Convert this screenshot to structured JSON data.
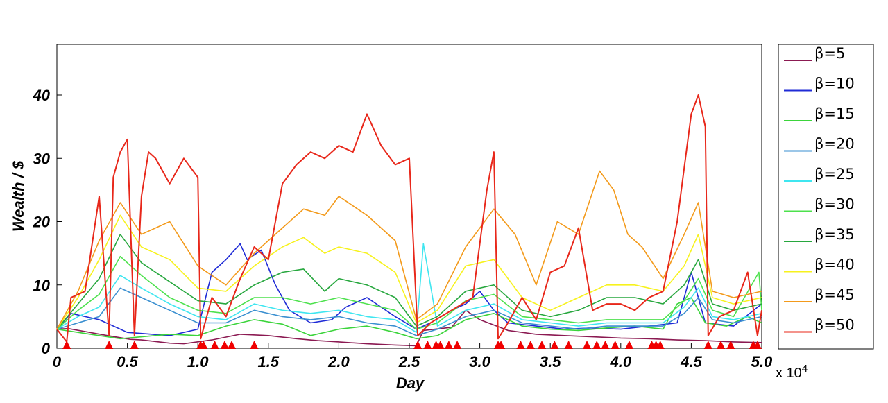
{
  "chart_data": {
    "type": "line",
    "title": "",
    "xlabel": "Day",
    "ylabel": "Wealth / $",
    "x_tick_labels": [
      "0",
      "0.5",
      "1.0",
      "1.5",
      "2.0",
      "2.5",
      "3.0",
      "3.5",
      "4.0",
      "4.5",
      "5.0"
    ],
    "x_multiplier_label": "x 10",
    "x_multiplier_exp": "4",
    "y_tick_labels": [
      "0",
      "10",
      "20",
      "30",
      "40"
    ],
    "xlim": [
      0,
      50000
    ],
    "ylim": [
      0,
      48
    ],
    "grid": false,
    "legend_position": "right",
    "reset_markers_x": [
      700,
      3700,
      5500,
      10200,
      10400,
      11200,
      11900,
      12400,
      14000,
      25600,
      26300,
      26900,
      27200,
      27800,
      28400,
      31300,
      31500,
      32900,
      33600,
      34400,
      35300,
      36300,
      37600,
      38300,
      38900,
      39600,
      40600,
      42200,
      42500,
      42800,
      46200,
      47100,
      47800,
      49400,
      49700
    ],
    "series": [
      {
        "name": "β=5",
        "color": "#8B1A52",
        "x": [
          0,
          800,
          3600,
          5200,
          6000,
          8000,
          9000,
          11000,
          13000,
          15000,
          17000,
          18500,
          20000,
          22000,
          24000,
          25500,
          26000,
          28000,
          29000,
          30000,
          31200,
          32000,
          34000,
          36000,
          38000,
          40000,
          42000,
          44000,
          46000,
          48000,
          50000
        ],
        "values": [
          3.0,
          3.1,
          2.0,
          1.4,
          1.3,
          0.8,
          0.7,
          1.3,
          2.2,
          2.0,
          1.5,
          1.2,
          1.0,
          0.7,
          0.5,
          0.4,
          2.8,
          3.3,
          6.0,
          4.5,
          3.5,
          2.8,
          2.2,
          2.0,
          1.8,
          1.6,
          1.5,
          1.3,
          1.2,
          1.0,
          0.9
        ]
      },
      {
        "name": "β=10",
        "color": "#1F2BD6",
        "x": [
          0,
          1000,
          3000,
          5000,
          8000,
          10000,
          11000,
          12000,
          13000,
          13500,
          14500,
          15500,
          16500,
          18000,
          19500,
          20500,
          22000,
          24000,
          25500,
          26500,
          28000,
          29000,
          30000,
          31000,
          32000,
          34000,
          36000,
          38000,
          40000,
          42000,
          44000,
          45000,
          46000,
          48000,
          50000
        ],
        "values": [
          3.0,
          5.5,
          4.5,
          2.5,
          2.0,
          3.0,
          12.0,
          14.0,
          16.5,
          14.0,
          15.5,
          10.0,
          6.0,
          4.0,
          4.5,
          6.5,
          8.0,
          5.0,
          3.0,
          4.0,
          6.0,
          7.0,
          9.0,
          6.0,
          4.0,
          3.5,
          3.0,
          3.2,
          3.0,
          3.5,
          4.0,
          12.0,
          4.0,
          3.5,
          7.0
        ]
      },
      {
        "name": "β=15",
        "color": "#3BD43B",
        "x": [
          0,
          1500,
          3000,
          4500,
          6000,
          8000,
          10000,
          12000,
          14000,
          16000,
          18000,
          20000,
          22000,
          24000,
          25500,
          27000,
          29000,
          31000,
          33000,
          35000,
          37000,
          39000,
          41000,
          43000,
          44000,
          45000,
          46000,
          47500,
          49000,
          50000
        ],
        "values": [
          3.0,
          2.5,
          2.0,
          1.5,
          1.8,
          2.2,
          2.0,
          3.5,
          4.5,
          3.8,
          2.0,
          3.0,
          3.5,
          2.5,
          1.5,
          2.0,
          4.5,
          5.5,
          3.5,
          3.0,
          2.8,
          3.2,
          3.5,
          3.0,
          7.0,
          8.0,
          4.0,
          3.5,
          5.0,
          4.0
        ]
      },
      {
        "name": "β=20",
        "color": "#3A8FD0",
        "x": [
          0,
          1500,
          3000,
          4500,
          6000,
          8000,
          10000,
          12000,
          14000,
          16000,
          18000,
          20000,
          22000,
          24000,
          25500,
          27000,
          29000,
          31000,
          33000,
          35000,
          37000,
          39000,
          41000,
          43000,
          44500,
          45500,
          46500,
          48000,
          50000
        ],
        "values": [
          3.0,
          4.0,
          5.0,
          9.5,
          8.0,
          6.0,
          4.0,
          4.0,
          6.0,
          5.0,
          4.5,
          5.0,
          4.0,
          3.5,
          2.0,
          3.0,
          5.0,
          6.0,
          4.0,
          3.5,
          3.0,
          3.5,
          3.5,
          3.5,
          5.5,
          8.0,
          4.5,
          4.0,
          5.0
        ]
      },
      {
        "name": "β=25",
        "color": "#3FE6F0",
        "x": [
          0,
          1500,
          3000,
          4500,
          6000,
          8000,
          10000,
          12000,
          14000,
          16000,
          18000,
          20000,
          22000,
          24000,
          25500,
          26000,
          27000,
          29000,
          31000,
          33000,
          35000,
          37000,
          39000,
          41000,
          43000,
          44500,
          45500,
          46500,
          48000,
          50000
        ],
        "values": [
          3.0,
          5.0,
          6.5,
          11.5,
          9.5,
          7.0,
          5.0,
          4.5,
          7.0,
          6.0,
          5.5,
          6.0,
          5.0,
          4.5,
          2.5,
          16.5,
          3.5,
          6.0,
          7.0,
          4.5,
          4.0,
          3.5,
          4.0,
          4.0,
          4.0,
          6.5,
          9.5,
          5.0,
          4.5,
          5.5
        ]
      },
      {
        "name": "β=30",
        "color": "#4DE14D",
        "x": [
          0,
          1500,
          3000,
          4500,
          6000,
          8000,
          10000,
          12000,
          14000,
          16000,
          18000,
          20000,
          22000,
          24000,
          25500,
          27000,
          29000,
          31000,
          33000,
          35000,
          37000,
          39000,
          41000,
          43000,
          44500,
          45500,
          46500,
          48000,
          49800,
          50000
        ],
        "values": [
          3.0,
          6.0,
          8.5,
          14.5,
          11.5,
          8.0,
          6.0,
          5.5,
          8.0,
          8.0,
          7.0,
          8.0,
          7.0,
          6.0,
          3.0,
          4.0,
          7.5,
          8.5,
          5.0,
          4.5,
          4.0,
          4.5,
          4.5,
          4.5,
          7.5,
          11.0,
          6.0,
          5.0,
          12.0,
          6.0
        ]
      },
      {
        "name": "β=35",
        "color": "#27A73E",
        "x": [
          0,
          1500,
          3000,
          4500,
          6000,
          8000,
          10000,
          12000,
          14000,
          16000,
          17500,
          19000,
          20000,
          22000,
          24000,
          25500,
          27000,
          29000,
          31000,
          33000,
          35000,
          37000,
          39000,
          41000,
          43000,
          44500,
          45500,
          46500,
          48000,
          50000
        ],
        "values": [
          3.0,
          7.0,
          11.0,
          18.0,
          13.5,
          10.5,
          7.5,
          7.0,
          10.0,
          12.0,
          12.5,
          9.0,
          11.0,
          10.0,
          8.0,
          3.5,
          5.0,
          9.0,
          10.0,
          6.0,
          5.0,
          6.0,
          8.0,
          8.0,
          7.0,
          10.0,
          14.0,
          7.0,
          6.0,
          7.0
        ]
      },
      {
        "name": "β=40",
        "color": "#F7F21D",
        "x": [
          0,
          1500,
          3000,
          4500,
          6000,
          8000,
          10000,
          12000,
          14000,
          16000,
          17500,
          19000,
          20000,
          22000,
          24000,
          25500,
          27000,
          29000,
          31000,
          33000,
          35000,
          37000,
          39000,
          41000,
          43000,
          44500,
          45500,
          46500,
          48000,
          50000
        ],
        "values": [
          3.0,
          8.0,
          14.0,
          21.0,
          16.0,
          14.0,
          9.5,
          9.0,
          13.0,
          16.0,
          17.5,
          15.0,
          16.0,
          15.0,
          12.0,
          4.0,
          6.0,
          13.0,
          14.0,
          8.0,
          6.0,
          8.0,
          10.0,
          10.0,
          9.0,
          13.0,
          18.0,
          8.0,
          7.0,
          8.0
        ]
      },
      {
        "name": "β=45",
        "color": "#F39A1B",
        "x": [
          0,
          1500,
          3000,
          4500,
          6000,
          8000,
          10000,
          12000,
          14000,
          16000,
          17500,
          19000,
          20000,
          22000,
          24000,
          25500,
          27000,
          29000,
          31000,
          32500,
          34000,
          35500,
          37000,
          38500,
          39500,
          40500,
          41500,
          43000,
          44500,
          45500,
          46500,
          48000,
          50000
        ],
        "values": [
          3.0,
          9.0,
          17.0,
          23.0,
          18.0,
          20.0,
          13.0,
          10.0,
          15.0,
          19.0,
          22.0,
          21.0,
          24.0,
          21.0,
          17.0,
          4.5,
          7.0,
          16.0,
          22.0,
          18.0,
          10.0,
          20.0,
          18.0,
          28.0,
          25.0,
          18.0,
          16.0,
          11.0,
          18.0,
          23.0,
          9.0,
          8.0,
          9.0
        ]
      },
      {
        "name": "β=50",
        "color": "#E8271A",
        "x": [
          0,
          700,
          1000,
          2000,
          3000,
          3700,
          4000,
          4500,
          5000,
          5500,
          6000,
          6500,
          7000,
          8000,
          9000,
          10000,
          10200,
          11000,
          12000,
          13000,
          14000,
          15000,
          16000,
          17000,
          18000,
          19000,
          20000,
          21000,
          22000,
          23000,
          24000,
          25000,
          25600,
          26500,
          28000,
          29500,
          30500,
          31000,
          31300,
          32000,
          33000,
          34000,
          35000,
          36000,
          37000,
          38000,
          39000,
          40000,
          41000,
          42000,
          43000,
          44000,
          45000,
          45500,
          46000,
          46200,
          47000,
          48000,
          49000,
          49700,
          50000
        ],
        "values": [
          3.0,
          1.0,
          8.0,
          9.0,
          24.0,
          2.0,
          27.0,
          31.0,
          33.0,
          2.0,
          24.0,
          31.0,
          30.0,
          26.0,
          30.0,
          27.0,
          1.5,
          8.0,
          5.0,
          11.0,
          16.0,
          14.0,
          26.0,
          29.0,
          31.0,
          30.0,
          32.0,
          31.0,
          37.0,
          32.0,
          29.0,
          30.0,
          2.0,
          4.0,
          6.0,
          8.0,
          25.0,
          31.0,
          1.5,
          4.0,
          8.0,
          4.5,
          12.0,
          13.0,
          19.0,
          6.0,
          7.0,
          7.0,
          6.0,
          8.0,
          9.0,
          20.0,
          37.0,
          40.0,
          35.0,
          2.0,
          5.0,
          6.0,
          12.0,
          2.0,
          6.0
        ]
      }
    ]
  }
}
